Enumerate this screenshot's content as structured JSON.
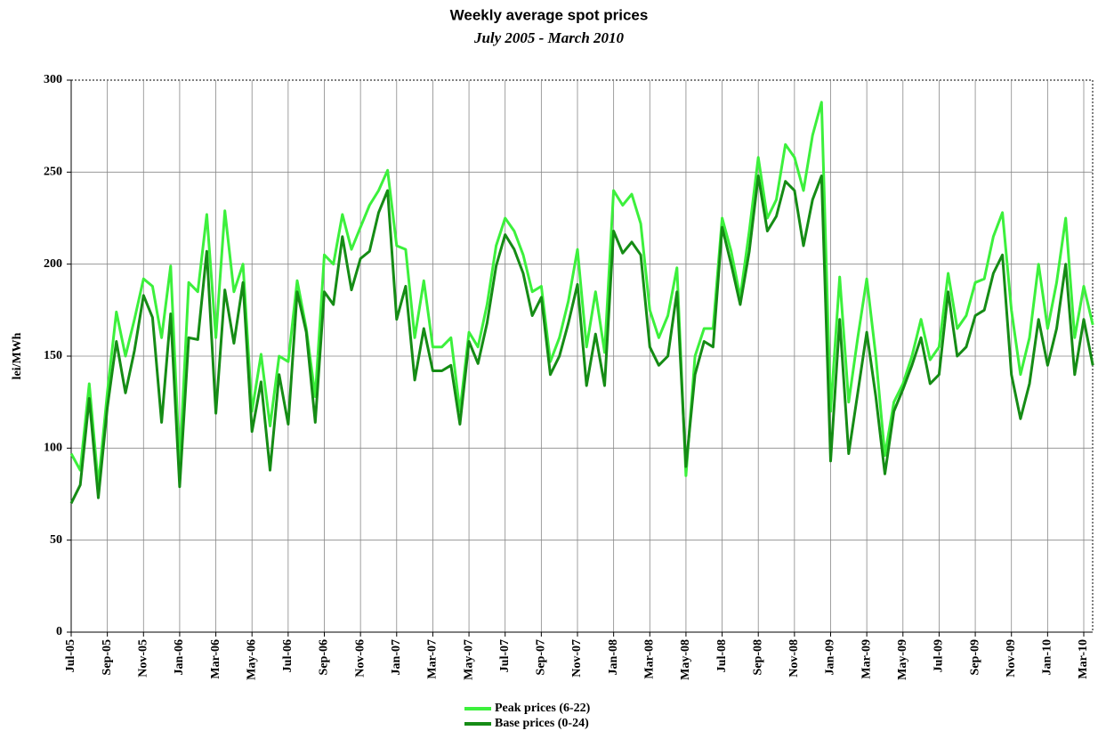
{
  "chart_data": {
    "type": "line",
    "title": "Weekly average spot prices",
    "subtitle": "July 2005 - March 2010",
    "y_label": "lei/MWh",
    "categories": [
      "Jul-05",
      null,
      null,
      null,
      "Sep-05",
      null,
      null,
      null,
      "Nov-05",
      null,
      null,
      null,
      "Jan-06",
      null,
      null,
      null,
      "Mar-06",
      null,
      null,
      null,
      "May-06",
      null,
      null,
      null,
      "Jul-06",
      null,
      null,
      null,
      "Sep-06",
      null,
      null,
      null,
      "Nov-06",
      null,
      null,
      null,
      "Jan-07",
      null,
      null,
      null,
      "Mar-07",
      null,
      null,
      null,
      "May-07",
      null,
      null,
      null,
      "Jul-07",
      null,
      null,
      null,
      "Sep-07",
      null,
      null,
      null,
      "Nov-07",
      null,
      null,
      null,
      "Jan-08",
      null,
      null,
      null,
      "Mar-08",
      null,
      null,
      null,
      "May-08",
      null,
      null,
      null,
      "Jul-08",
      null,
      null,
      null,
      "Sep-08",
      null,
      null,
      null,
      "Nov-08",
      null,
      null,
      null,
      "Jan-09",
      null,
      null,
      null,
      "Mar-09",
      null,
      null,
      null,
      "May-09",
      null,
      null,
      null,
      "Jul-09",
      null,
      null,
      null,
      "Sep-09",
      null,
      null,
      null,
      "Nov-09",
      null,
      null,
      null,
      "Jan-10",
      null,
      null,
      null,
      "Mar-10",
      null
    ],
    "series": [
      {
        "name": "Peak prices (6-22)",
        "color": "#3cf03c",
        "values": [
          97,
          88,
          135,
          80,
          130,
          174,
          150,
          170,
          192,
          188,
          160,
          199,
          90,
          190,
          185,
          227,
          160,
          229,
          185,
          200,
          120,
          151,
          112,
          150,
          147,
          191,
          165,
          128,
          205,
          200,
          227,
          208,
          220,
          232,
          240,
          251,
          210,
          208,
          160,
          191,
          155,
          155,
          160,
          120,
          163,
          155,
          178,
          210,
          225,
          218,
          205,
          185,
          188,
          147,
          160,
          180,
          208,
          155,
          185,
          152,
          240,
          232,
          238,
          222,
          175,
          160,
          172,
          198,
          85,
          150,
          165,
          165,
          225,
          207,
          182,
          218,
          258,
          225,
          235,
          265,
          258,
          240,
          270,
          288,
          120,
          193,
          125,
          160,
          192,
          150,
          96,
          125,
          135,
          150,
          170,
          148,
          155,
          195,
          165,
          172,
          190,
          192,
          215,
          228,
          175,
          140,
          160,
          200,
          165,
          190,
          225,
          160,
          188,
          167
        ]
      },
      {
        "name": "Base prices (0-24)",
        "color": "#158c15",
        "values": [
          70,
          80,
          127,
          73,
          122,
          158,
          130,
          153,
          183,
          171,
          114,
          173,
          79,
          160,
          159,
          207,
          119,
          186,
          157,
          190,
          109,
          136,
          88,
          140,
          113,
          185,
          163,
          114,
          185,
          178,
          215,
          186,
          203,
          207,
          228,
          240,
          170,
          188,
          137,
          165,
          142,
          142,
          145,
          113,
          158,
          146,
          168,
          199,
          216,
          208,
          195,
          172,
          182,
          140,
          150,
          168,
          189,
          134,
          162,
          134,
          218,
          206,
          212,
          205,
          155,
          145,
          150,
          185,
          90,
          140,
          158,
          155,
          220,
          200,
          178,
          207,
          248,
          218,
          226,
          245,
          240,
          210,
          235,
          248,
          93,
          170,
          97,
          130,
          163,
          128,
          86,
          120,
          132,
          145,
          160,
          135,
          140,
          185,
          150,
          155,
          172,
          175,
          195,
          205,
          140,
          116,
          135,
          170,
          145,
          165,
          200,
          140,
          170,
          145
        ]
      }
    ],
    "ylim": [
      0,
      300
    ],
    "yticks": [
      0,
      50,
      100,
      150,
      200,
      250,
      300
    ],
    "grid": true,
    "legend": "bottom"
  }
}
